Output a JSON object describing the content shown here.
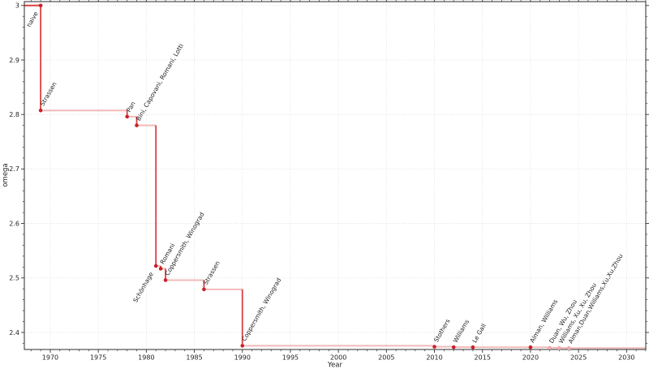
{
  "figure": {
    "background": "#ffffff"
  },
  "chart_data": {
    "type": "line",
    "subtype": "step-post",
    "title": "",
    "xlabel": "Year",
    "ylabel": "omega",
    "xlim": [
      1967.3,
      2032.0
    ],
    "ylim": [
      2.3687,
      3.0071
    ],
    "grid": true,
    "legend": "none",
    "x_ticks": [
      {
        "value": 1970,
        "label": "1970"
      },
      {
        "value": 1975,
        "label": "1975"
      },
      {
        "value": 1980,
        "label": "1980"
      },
      {
        "value": 1985,
        "label": "1985"
      },
      {
        "value": 1990,
        "label": "1990"
      },
      {
        "value": 1995,
        "label": "1995"
      },
      {
        "value": 2000,
        "label": "2000"
      },
      {
        "value": 2005,
        "label": "2005"
      },
      {
        "value": 2010,
        "label": "2010"
      },
      {
        "value": 2015,
        "label": "2015"
      },
      {
        "value": 2020,
        "label": "2020"
      },
      {
        "value": 2025,
        "label": "2025"
      },
      {
        "value": 2030,
        "label": "2030"
      }
    ],
    "y_ticks": [
      {
        "value": 2.4,
        "label": "2.4"
      },
      {
        "value": 2.5,
        "label": "2.5"
      },
      {
        "value": 2.6,
        "label": "2.6"
      },
      {
        "value": 2.7,
        "label": "2.7"
      },
      {
        "value": 2.8,
        "label": "2.8"
      },
      {
        "value": 2.9,
        "label": "2.9"
      },
      {
        "value": 3.0,
        "label": "3"
      }
    ],
    "x_minor_step": 1,
    "y_minor_step": 0.02,
    "colors": {
      "line_vertical": "#d62728",
      "line_horizontal": "#d62728",
      "line_horizontal_opacity": 0.32,
      "line_vertical_opacity": 0.88,
      "marker": "#c92127",
      "marker_faded": "#f2a9a9",
      "label": "#2e2e2e",
      "label_faded": "#a0a0a0",
      "grid": "#dcdcdc",
      "spine": "#2b2b2b",
      "tick": "#333333"
    },
    "points": [
      {
        "year": 1969,
        "omega": 3.0,
        "label": "naive",
        "label_side": "below-left",
        "faded": false
      },
      {
        "year": 1969,
        "omega": 2.8074,
        "label": "Strassen",
        "label_side": "above-right",
        "faded": false
      },
      {
        "year": 1978,
        "omega": 2.796,
        "label": "Pan",
        "label_side": "above-right",
        "faded": false
      },
      {
        "year": 1979,
        "omega": 2.78,
        "label": "Bini, Capovani, Romani, Lotti",
        "label_side": "above-right",
        "faded": false
      },
      {
        "year": 1981,
        "omega": 2.522,
        "label": "Schönhage",
        "label_side": "below-left",
        "faded": false
      },
      {
        "year": 1981.5,
        "omega": 2.517,
        "label": "Romani",
        "label_side": "above-right",
        "faded": false
      },
      {
        "year": 1982,
        "omega": 2.496,
        "label": "Coppersmith, Winograd",
        "label_side": "above-right",
        "faded": false
      },
      {
        "year": 1986,
        "omega": 2.479,
        "label": "Strassen",
        "label_side": "above-right",
        "faded": false
      },
      {
        "year": 1990,
        "omega": 2.3755,
        "label": "Coppersmith, Winograd",
        "label_side": "above-right",
        "faded": false
      },
      {
        "year": 2010,
        "omega": 2.3737,
        "label": "Stothers",
        "label_side": "above-right",
        "faded": false
      },
      {
        "year": 2012,
        "omega": 2.3729,
        "label": "Williams",
        "label_side": "above-right",
        "faded": false
      },
      {
        "year": 2014,
        "omega": 2.3728639,
        "label": "Le Gall",
        "label_side": "above-right",
        "faded": false
      },
      {
        "year": 2020,
        "omega": 2.3728596,
        "label": "Alman, Williams",
        "label_side": "above-right",
        "faded": false
      },
      {
        "year": 2022,
        "omega": 2.371866,
        "label": "Duan, Wu, Zhou",
        "label_side": "above-right",
        "faded": true
      },
      {
        "year": 2023,
        "omega": 2.371552,
        "label": "Williams, Xu, Xu, Zhou",
        "label_side": "above-right",
        "faded": true
      },
      {
        "year": 2024,
        "omega": 2.371339,
        "label": "Alman,Duan,Williams,Xu,Xu,Zhou",
        "label_side": "above-right",
        "faded": true
      }
    ]
  }
}
